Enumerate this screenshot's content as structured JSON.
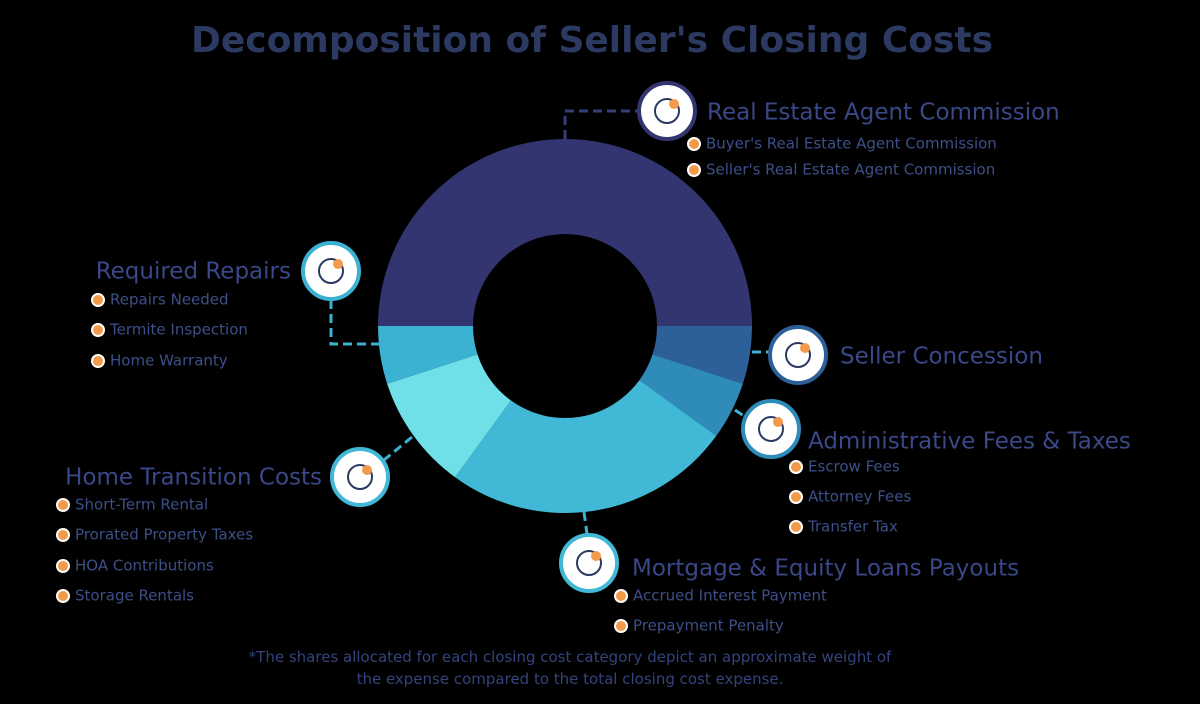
{
  "chart_data": {
    "type": "donut",
    "title": "Decomposition of Seller's Closing Costs",
    "note": "*The shares allocated for each closing cost category depict an approximate weight of the expense compared to the total closing cost expense.",
    "categories": [
      "Real Estate Agent Commission",
      "Seller Concession",
      "Administrative Fees & Taxes",
      "Mortgage & Equity Loans Payouts",
      "Home Transition Costs",
      "Required Repairs"
    ],
    "values": [
      50,
      5,
      5,
      25,
      10,
      5
    ],
    "colors": [
      "#333570",
      "#2d5f99",
      "#2f8bb9",
      "#41b8d6",
      "#6fe0e8",
      "#3cb2d2"
    ],
    "items": [
      [
        "Buyer's Real Estate Agent Commission",
        "Seller's Real Estate Agent Commission"
      ],
      [],
      [
        "Escrow Fees",
        "Attorney Fees",
        "Transfer Tax"
      ],
      [
        "Accrued Interest Payment",
        "Prepayment Penalty"
      ],
      [
        "Short-Term Rental",
        "Prorated Property Taxes",
        "HOA Contributions",
        "Storage Rentals"
      ],
      [
        "Repairs Needed",
        "Termite Inspection",
        "Home Warranty"
      ]
    ]
  }
}
